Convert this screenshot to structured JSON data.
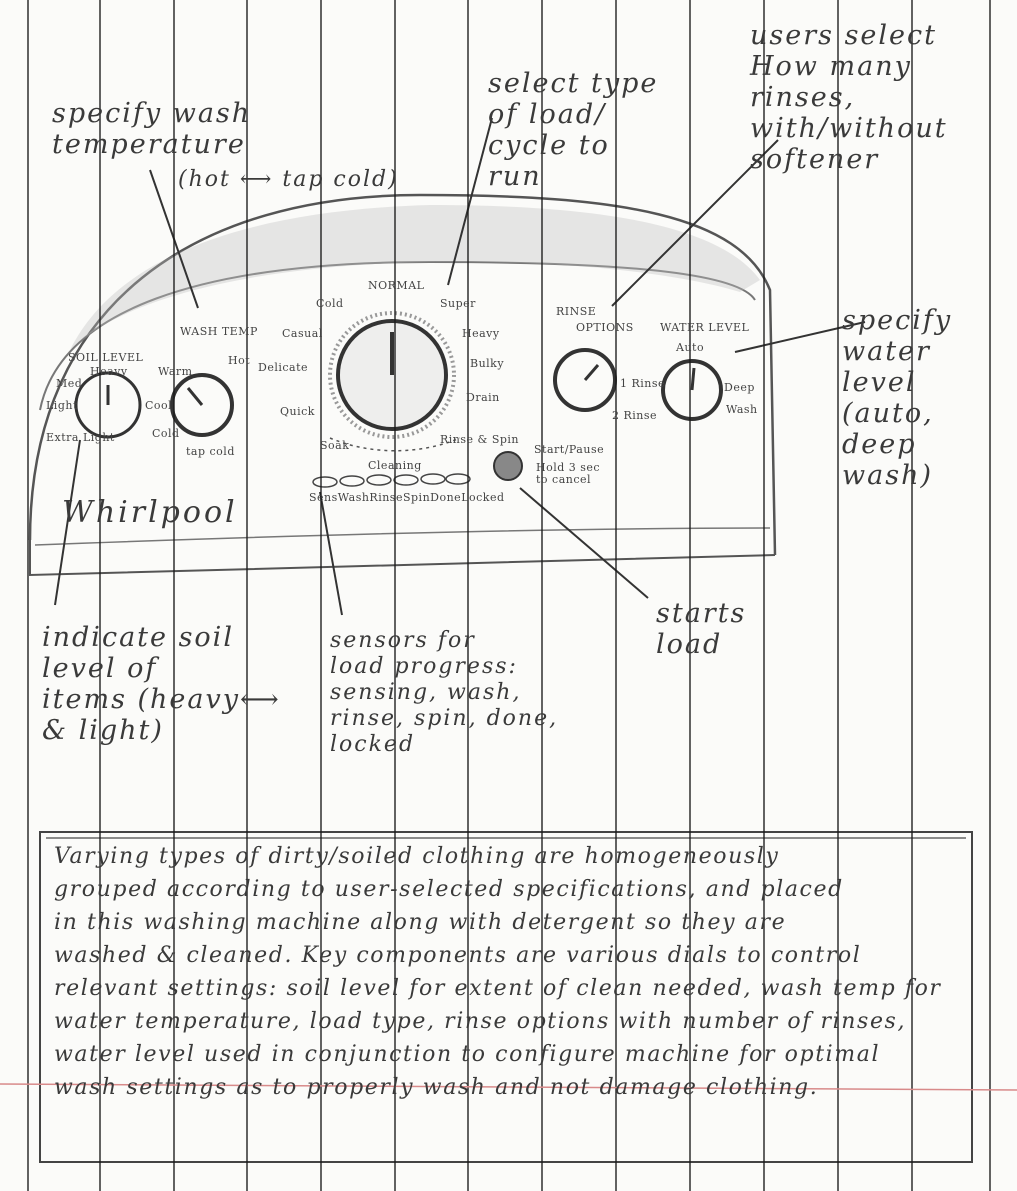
{
  "annotations": {
    "wash_temp": "specify wash\n temperature",
    "wash_temp_range": "(hot ⟷ tap cold)",
    "cycle": "select type\n of load/\n cycle to\n run",
    "rinse": "users select\nHow many\nrinses,\nwith/without\nsoftener",
    "water": "specify\nwater\nlevel\n(auto, deep\nwash)",
    "soil": "indicate soil\nlevel of\nitems (heavy⟷\n  & light)",
    "sensors": "sensors for\nload progress:\nsensing, wash,\nrinse, spin, done,\n  locked",
    "start": "starts\n load"
  },
  "panel": {
    "brand": "Whirlpool",
    "soil_title": "SOIL LEVEL",
    "soil_heavy": "Heavy",
    "soil_light": "Light",
    "soil_extra_light": "Extra Light",
    "soil_med": "Med",
    "washtemp_title": "WASH TEMP",
    "washtemp_hot": "Hot",
    "washtemp_warm": "Warm",
    "washtemp_cool": "Cool",
    "washtemp_cold": "Cold",
    "washtemp_tap": "tap cold",
    "cycle_normal": "NORMAL",
    "cycle_cold": "Cold",
    "cycle_casual": "Casual",
    "cycle_delicate": "Delicate",
    "cycle_quick": "Quick",
    "cycle_soak": "Soak",
    "cycle_super": "Super",
    "cycle_heavy": "Heavy",
    "cycle_bulky": "Bulky",
    "cycle_drain": "Drain",
    "cycle_rinse_spin": "Rinse & Spin",
    "cycle_cleaning": "Cleaning",
    "rinse_title": "RINSE",
    "rinse_options": "OPTIONS",
    "rinse_1": "1 Rinse",
    "rinse_2": "2 Rinse",
    "water_title": "WATER LEVEL",
    "water_auto": "Auto",
    "water_deep": "Deep",
    "water_wash": "Wash",
    "start_title": "Start/Pause",
    "start_sub": "Hold 3 sec\nto cancel",
    "sensor_labels": [
      "Sens",
      "Wash",
      "Rinse",
      "Spin",
      "Done",
      "Locked"
    ]
  },
  "description": "Varying types of dirty/soiled clothing are homogeneously\ngrouped according to user-selected specifications, and placed\nin this washing machine along with detergent so they are\nwashed & cleaned. Key components are various dials to control\nrelevant settings: soil level for extent of clean needed, wash temp for\nwater temperature, load type, rinse options with number of rinses,\nwater level used in conjunction to configure machine for optimal\nwash settings as to properly wash and not damage clothing.",
  "colors": {
    "paper": "#fbfbf9",
    "pencil": "#3a3a3a",
    "rule_lines": "#1a1a1a",
    "margin_line": "#d88a8a"
  }
}
